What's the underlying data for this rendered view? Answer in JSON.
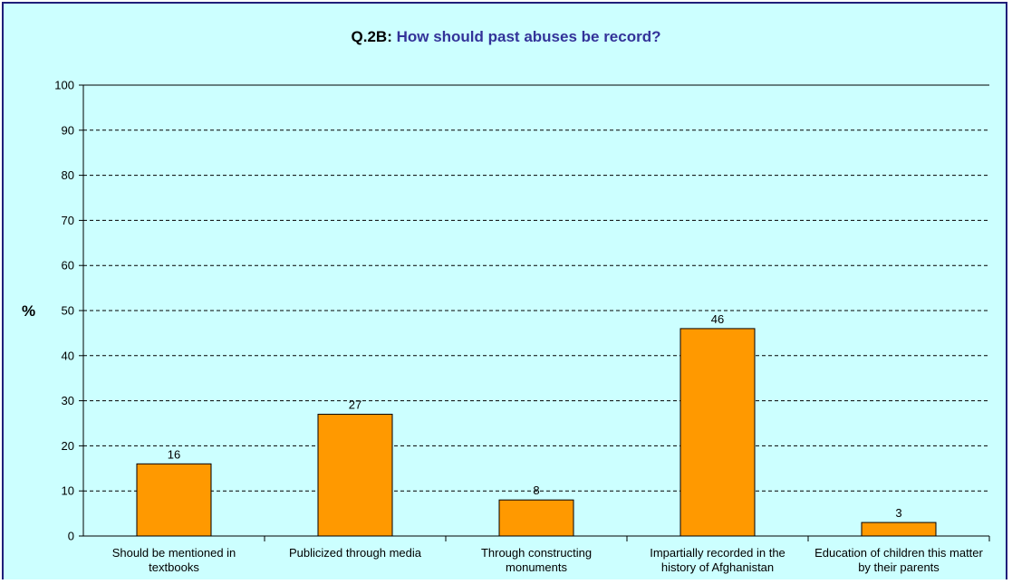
{
  "chart_data": {
    "type": "bar",
    "title_prefix": "Q.2B:",
    "title_text": "How should past abuses be record?",
    "xlabel": "",
    "ylabel": "%",
    "ylim": [
      0,
      100
    ],
    "yticks": [
      0,
      10,
      20,
      30,
      40,
      50,
      60,
      70,
      80,
      90,
      100
    ],
    "grid": true,
    "categories": [
      "Should be mentioned in textbooks",
      "Publicized through media",
      "Through constructing monuments",
      "Impartially recorded in the history of Afghanistan",
      "Education of children this matter by their parents"
    ],
    "values": [
      16,
      27,
      8,
      46,
      3
    ],
    "value_labels": [
      "16",
      "27",
      "8",
      "46",
      "3"
    ],
    "colors": {
      "bar": "#ff9900",
      "bar_edge": "#000000",
      "background": "#ccffff",
      "title_accent": "#333399"
    }
  }
}
